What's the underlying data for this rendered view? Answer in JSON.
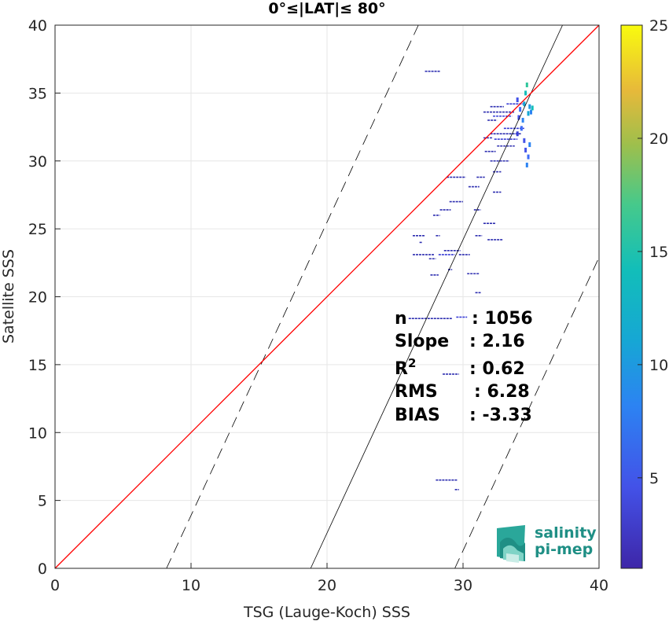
{
  "chart_data": {
    "type": "scatter",
    "title": "0°≤|LAT|≤ 80°",
    "xlabel": "TSG (Lauge-Koch) SSS",
    "ylabel": "Satellite SSS",
    "xlim": [
      0,
      40
    ],
    "ylim": [
      0,
      40
    ],
    "xticks": [
      "0",
      "10",
      "20",
      "30",
      "40"
    ],
    "yticks": [
      "0",
      "5",
      "10",
      "15",
      "20",
      "25",
      "30",
      "35",
      "40"
    ],
    "grid": true,
    "colorbar": {
      "range": [
        1,
        25
      ],
      "ticks": [
        "5",
        "10",
        "15",
        "20",
        "25"
      ],
      "colormap": "parula"
    },
    "lines": {
      "one_to_one": {
        "color": "#ff0000",
        "from": [
          0,
          0
        ],
        "to": [
          40,
          40
        ]
      },
      "fit": {
        "color": "#000000",
        "slope": 2.16,
        "intercept": -40.6
      },
      "bounds": {
        "color": "#000000",
        "style": "dashed",
        "offset_sss": 10.6
      }
    },
    "stats": [
      {
        "label": "n",
        "value": ": 1056"
      },
      {
        "label": "Slope",
        "value": ": 2.16"
      },
      {
        "label": "R",
        "sup": "2",
        "value": ": 0.62"
      },
      {
        "label": "RMS",
        "value": ": 6.28"
      },
      {
        "label": "BIAS",
        "value": ": -3.33"
      }
    ],
    "segments": [
      {
        "x1": 27.2,
        "x2": 28.3,
        "y": 36.6,
        "c": 2
      },
      {
        "x1": 32.0,
        "x2": 33.0,
        "y": 34.0,
        "c": 2
      },
      {
        "x1": 31.5,
        "x2": 33.8,
        "y": 33.6,
        "c": 2
      },
      {
        "x1": 32.2,
        "x2": 33.6,
        "y": 33.3,
        "c": 3
      },
      {
        "x1": 31.8,
        "x2": 32.5,
        "y": 33.0,
        "c": 2
      },
      {
        "x1": 33.2,
        "x2": 34.6,
        "y": 34.2,
        "c": 3
      },
      {
        "x1": 33.0,
        "x2": 34.5,
        "y": 32.4,
        "c": 3
      },
      {
        "x1": 32.0,
        "x2": 34.3,
        "y": 32.0,
        "c": 2
      },
      {
        "x1": 32.3,
        "x2": 34.0,
        "y": 31.6,
        "c": 3
      },
      {
        "x1": 31.5,
        "x2": 32.2,
        "y": 31.7,
        "c": 2
      },
      {
        "x1": 32.5,
        "x2": 33.8,
        "y": 31.1,
        "c": 2
      },
      {
        "x1": 31.6,
        "x2": 32.4,
        "y": 30.7,
        "c": 2
      },
      {
        "x1": 32.0,
        "x2": 33.4,
        "y": 30.0,
        "c": 2
      },
      {
        "x1": 32.2,
        "x2": 32.8,
        "y": 29.2,
        "c": 2
      },
      {
        "x1": 31.0,
        "x2": 31.6,
        "y": 28.8,
        "c": 2
      },
      {
        "x1": 28.8,
        "x2": 30.2,
        "y": 28.8,
        "c": 2
      },
      {
        "x1": 30.4,
        "x2": 31.2,
        "y": 28.1,
        "c": 2
      },
      {
        "x1": 32.2,
        "x2": 32.8,
        "y": 27.7,
        "c": 2
      },
      {
        "x1": 29.0,
        "x2": 30.0,
        "y": 27.0,
        "c": 2
      },
      {
        "x1": 28.3,
        "x2": 29.1,
        "y": 26.4,
        "c": 2
      },
      {
        "x1": 30.8,
        "x2": 31.3,
        "y": 26.4,
        "c": 2
      },
      {
        "x1": 27.8,
        "x2": 28.3,
        "y": 26.0,
        "c": 2
      },
      {
        "x1": 31.5,
        "x2": 32.4,
        "y": 25.4,
        "c": 2
      },
      {
        "x1": 26.3,
        "x2": 27.2,
        "y": 24.5,
        "c": 2
      },
      {
        "x1": 28.0,
        "x2": 28.3,
        "y": 24.5,
        "c": 2
      },
      {
        "x1": 30.9,
        "x2": 31.4,
        "y": 24.5,
        "c": 2
      },
      {
        "x1": 31.8,
        "x2": 32.9,
        "y": 24.2,
        "c": 2
      },
      {
        "x1": 26.8,
        "x2": 27.0,
        "y": 24.0,
        "c": 2
      },
      {
        "x1": 28.6,
        "x2": 29.8,
        "y": 23.4,
        "c": 2
      },
      {
        "x1": 26.3,
        "x2": 27.9,
        "y": 23.1,
        "c": 2
      },
      {
        "x1": 28.2,
        "x2": 29.4,
        "y": 23.1,
        "c": 3
      },
      {
        "x1": 29.7,
        "x2": 30.5,
        "y": 23.1,
        "c": 2
      },
      {
        "x1": 27.5,
        "x2": 28.0,
        "y": 22.8,
        "c": 2
      },
      {
        "x1": 28.9,
        "x2": 29.2,
        "y": 22.0,
        "c": 2
      },
      {
        "x1": 30.3,
        "x2": 31.2,
        "y": 21.7,
        "c": 2
      },
      {
        "x1": 27.6,
        "x2": 28.2,
        "y": 21.6,
        "c": 2
      },
      {
        "x1": 30.9,
        "x2": 31.3,
        "y": 20.3,
        "c": 2
      },
      {
        "x1": 26.0,
        "x2": 29.2,
        "y": 18.4,
        "c": 2
      },
      {
        "x1": 29.5,
        "x2": 30.3,
        "y": 18.5,
        "c": 3
      },
      {
        "x1": 28.5,
        "x2": 29.7,
        "y": 14.3,
        "c": 2
      },
      {
        "x1": 28.0,
        "x2": 29.6,
        "y": 6.5,
        "c": 2
      },
      {
        "x1": 29.4,
        "x2": 29.7,
        "y": 5.8,
        "c": 2
      }
    ],
    "points": [
      {
        "x": 34.0,
        "y": 34.5,
        "c": 4
      },
      {
        "x": 34.2,
        "y": 33.8,
        "c": 5
      },
      {
        "x": 34.4,
        "y": 33.0,
        "c": 6
      },
      {
        "x": 34.5,
        "y": 34.2,
        "c": 8
      },
      {
        "x": 34.6,
        "y": 35.0,
        "c": 9
      },
      {
        "x": 34.7,
        "y": 35.6,
        "c": 10
      },
      {
        "x": 34.8,
        "y": 33.5,
        "c": 8
      },
      {
        "x": 34.9,
        "y": 34.0,
        "c": 7
      },
      {
        "x": 35.0,
        "y": 33.6,
        "c": 6
      },
      {
        "x": 34.3,
        "y": 32.4,
        "c": 5
      },
      {
        "x": 34.5,
        "y": 31.5,
        "c": 4
      },
      {
        "x": 34.6,
        "y": 30.8,
        "c": 4
      },
      {
        "x": 34.8,
        "y": 30.3,
        "c": 5
      },
      {
        "x": 34.9,
        "y": 31.2,
        "c": 6
      },
      {
        "x": 35.1,
        "y": 33.9,
        "c": 9
      },
      {
        "x": 34.7,
        "y": 29.7,
        "c": 6
      },
      {
        "x": 34.1,
        "y": 33.2,
        "c": 4
      },
      {
        "x": 34.0,
        "y": 32.0,
        "c": 3
      }
    ]
  },
  "logo": {
    "line1": "salinity",
    "line2": "pi-mep"
  }
}
